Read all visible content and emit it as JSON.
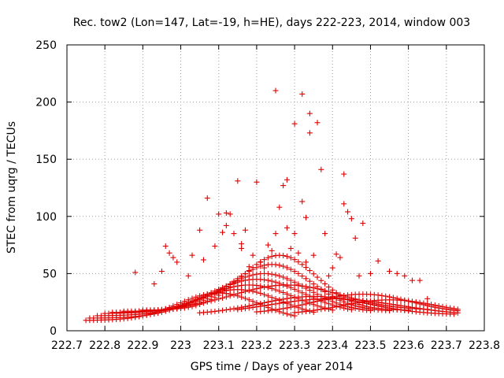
{
  "chart_data": {
    "type": "scatter",
    "title": "Rec. tow2 (Lon=147, Lat=-19, h=HE), days 222-223, 2014, window 003",
    "xlabel": "GPS time / Days of year 2014",
    "ylabel": "STEC from uqrg / TECUs",
    "xlim": [
      222.7,
      223.8
    ],
    "ylim": [
      0,
      250
    ],
    "x_ticks": [
      "222.7",
      "222.8",
      "222.9",
      "223",
      "223.1",
      "223.2",
      "223.3",
      "223.4",
      "223.5",
      "223.6",
      "223.7",
      "223.8"
    ],
    "y_ticks": [
      "0",
      "50",
      "100",
      "150",
      "200",
      "250"
    ],
    "grid": true,
    "marker": "plus",
    "color": "#e00000",
    "tracks": [
      {
        "x0": 222.75,
        "x1": 223.3,
        "ymin": 9,
        "ymax": 33,
        "peak": 223.1,
        "w": 0.15
      },
      {
        "x0": 222.76,
        "x1": 223.35,
        "ymin": 11,
        "ymax": 36,
        "peak": 223.15,
        "w": 0.16
      },
      {
        "x0": 222.78,
        "x1": 223.4,
        "ymin": 13,
        "ymax": 40,
        "peak": 223.18,
        "w": 0.17
      },
      {
        "x0": 222.8,
        "x1": 223.45,
        "ymin": 15,
        "ymax": 45,
        "peak": 223.2,
        "w": 0.17
      },
      {
        "x0": 222.82,
        "x1": 223.5,
        "ymin": 16,
        "ymax": 50,
        "peak": 223.22,
        "w": 0.16
      },
      {
        "x0": 222.85,
        "x1": 223.55,
        "ymin": 17,
        "ymax": 58,
        "peak": 223.24,
        "w": 0.15
      },
      {
        "x0": 222.9,
        "x1": 223.6,
        "ymin": 18,
        "ymax": 66,
        "peak": 223.26,
        "w": 0.14
      },
      {
        "x0": 223.0,
        "x1": 223.65,
        "ymin": 18,
        "ymax": 40,
        "peak": 223.28,
        "w": 0.2
      },
      {
        "x0": 223.05,
        "x1": 223.72,
        "ymin": 14,
        "ymax": 30,
        "peak": 223.35,
        "w": 0.2
      },
      {
        "x0": 223.15,
        "x1": 223.73,
        "ymin": 13,
        "ymax": 28,
        "peak": 223.4,
        "w": 0.25
      },
      {
        "x0": 223.2,
        "x1": 223.73,
        "ymin": 15,
        "ymax": 32,
        "peak": 223.48,
        "w": 0.18
      },
      {
        "x0": 223.3,
        "x1": 223.73,
        "ymin": 14,
        "ymax": 27,
        "peak": 223.55,
        "w": 0.18
      }
    ],
    "points": [
      [
        222.88,
        51
      ],
      [
        222.93,
        41
      ],
      [
        222.95,
        52
      ],
      [
        222.96,
        74
      ],
      [
        222.97,
        68
      ],
      [
        222.98,
        64
      ],
      [
        222.99,
        60
      ],
      [
        223.02,
        48
      ],
      [
        223.03,
        66
      ],
      [
        223.05,
        88
      ],
      [
        223.06,
        62
      ],
      [
        223.07,
        116
      ],
      [
        223.09,
        74
      ],
      [
        223.1,
        102
      ],
      [
        223.11,
        86
      ],
      [
        223.12,
        103
      ],
      [
        223.12,
        92
      ],
      [
        223.13,
        102
      ],
      [
        223.14,
        85
      ],
      [
        223.15,
        131
      ],
      [
        223.16,
        72
      ],
      [
        223.16,
        76
      ],
      [
        223.17,
        88
      ],
      [
        223.18,
        56
      ],
      [
        223.19,
        66
      ],
      [
        223.2,
        130
      ],
      [
        223.21,
        60
      ],
      [
        223.22,
        55
      ],
      [
        223.23,
        75
      ],
      [
        223.24,
        70
      ],
      [
        223.25,
        85
      ],
      [
        223.25,
        210
      ],
      [
        223.26,
        108
      ],
      [
        223.27,
        127
      ],
      [
        223.28,
        90
      ],
      [
        223.28,
        132
      ],
      [
        223.29,
        72
      ],
      [
        223.3,
        85
      ],
      [
        223.3,
        181
      ],
      [
        223.31,
        68
      ],
      [
        223.32,
        113
      ],
      [
        223.32,
        207
      ],
      [
        223.33,
        60
      ],
      [
        223.33,
        99
      ],
      [
        223.34,
        190
      ],
      [
        223.34,
        173
      ],
      [
        223.35,
        66
      ],
      [
        223.36,
        182
      ],
      [
        223.37,
        141
      ],
      [
        223.38,
        85
      ],
      [
        223.39,
        48
      ],
      [
        223.4,
        55
      ],
      [
        223.41,
        67
      ],
      [
        223.42,
        64
      ],
      [
        223.43,
        137
      ],
      [
        223.43,
        111
      ],
      [
        223.44,
        104
      ],
      [
        223.45,
        98
      ],
      [
        223.46,
        81
      ],
      [
        223.47,
        48
      ],
      [
        223.48,
        94
      ],
      [
        223.5,
        50
      ],
      [
        223.52,
        61
      ],
      [
        223.55,
        52
      ],
      [
        223.57,
        50
      ],
      [
        223.59,
        48
      ],
      [
        223.61,
        44
      ],
      [
        223.63,
        44
      ],
      [
        223.65,
        28
      ]
    ]
  }
}
